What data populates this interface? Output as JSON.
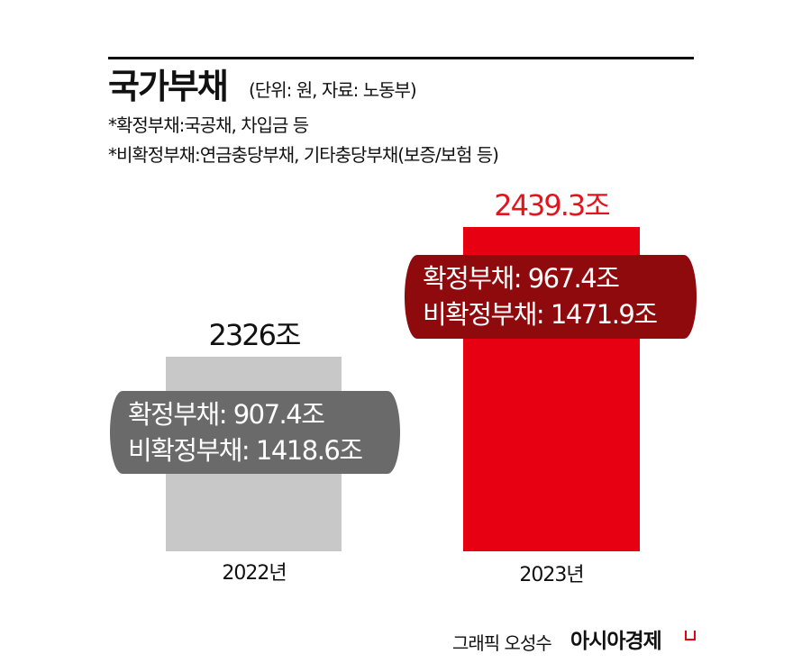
{
  "header": {
    "title": "국가부채",
    "unit_source": "(단위: 원, 자료: 노동부)",
    "notes": [
      "*확정부채:국공채, 차입금 등",
      "*비확정부채:연금충당부채, 기타충당부채(보증/보험 등)"
    ]
  },
  "bars": [
    {
      "year": "2022년",
      "total": "2326조",
      "confirmed": "확정부채: 907.4조",
      "unconfirmed": "비확정부채: 1418.6조",
      "bar_color": "#c8c8c8",
      "pill_color": "#6a6a6a",
      "total_color": "#111111"
    },
    {
      "year": "2023년",
      "total": "2439.3조",
      "confirmed": "확정부채: 967.4조",
      "unconfirmed": "비확정부채: 1471.9조",
      "bar_color": "#e60012",
      "pill_color": "#8e0a0c",
      "total_color": "#e0151e"
    }
  ],
  "footer": {
    "credit": "그래픽 오성수",
    "brand": "아시아경제"
  },
  "chart_data": {
    "type": "bar",
    "title": "국가부채",
    "subtitle": "(단위: 원, 자료: 노동부)",
    "notes": [
      "*확정부채:국공채, 차입금 등",
      "*비확정부채:연금충당부채, 기타충당부채(보증/보험 등)"
    ],
    "categories": [
      "2022년",
      "2023년"
    ],
    "values": [
      2326,
      2439.3
    ],
    "unit": "조",
    "series": [
      {
        "name": "확정부채",
        "values": [
          907.4,
          967.4
        ]
      },
      {
        "name": "비확정부채",
        "values": [
          1418.6,
          1471.9
        ]
      }
    ],
    "colors": [
      "#c8c8c8",
      "#e60012"
    ],
    "xlabel": "",
    "ylabel": "",
    "grid": false,
    "legend": "none"
  }
}
